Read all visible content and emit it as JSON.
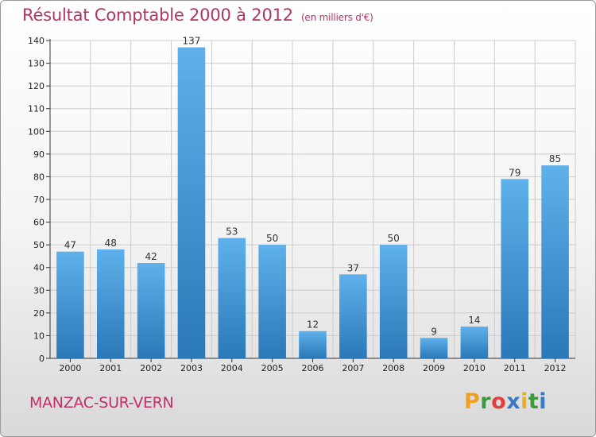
{
  "header": {
    "title": "Résultat Comptable 2000 à 2012",
    "unit": "(en milliers d'€)"
  },
  "footer": {
    "town": "MANZAC-SUR-VERN",
    "brand_letters": [
      "P",
      "r",
      "o",
      "x",
      "i",
      "t",
      "i"
    ],
    "brand_colors": [
      "#f0a020",
      "#3c9a3c",
      "#e04040",
      "#3a78c8",
      "#e8b020",
      "#3c9a3c",
      "#3a78c8"
    ]
  },
  "colors": {
    "bar_light": "#5eb1ea",
    "bar_dark": "#2a78b8",
    "grid": "#cccccc",
    "axis": "#333333"
  },
  "chart_data": {
    "type": "bar",
    "title": "Résultat Comptable 2000 à 2012",
    "subtitle": "(en milliers d'€)",
    "xlabel": "",
    "ylabel": "",
    "categories": [
      "2000",
      "2001",
      "2002",
      "2003",
      "2004",
      "2005",
      "2006",
      "2007",
      "2008",
      "2009",
      "2010",
      "2011",
      "2012"
    ],
    "values": [
      47,
      48,
      42,
      137,
      53,
      50,
      12,
      37,
      50,
      9,
      14,
      79,
      85
    ],
    "ylim": [
      0,
      140
    ],
    "yticks": [
      0,
      10,
      20,
      30,
      40,
      50,
      60,
      70,
      80,
      90,
      100,
      110,
      120,
      130,
      140
    ],
    "grid": true,
    "legend": "none"
  }
}
